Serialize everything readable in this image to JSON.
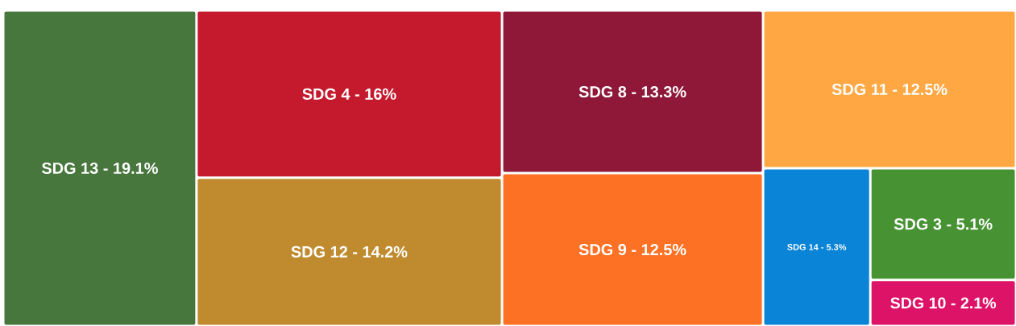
{
  "chart_data": {
    "type": "other",
    "categories": [
      "SDG 13 -",
      "SDG 4 -",
      "SDG 12 -",
      "SDG 8 -",
      "SDG 9 -",
      "SDG 11 -",
      "SDG 14 -",
      "SDG 3 -",
      "SDG 10 -"
    ],
    "values": [
      19.1,
      16,
      14.2,
      13.3,
      12.5,
      12.5,
      5.3,
      5.1,
      2.1
    ],
    "value_labels": [
      "19.1%",
      "16%",
      "14.2%",
      "13.3%",
      "12.5%",
      "12.5%",
      "5.3%",
      "5.1%",
      "2.1%"
    ],
    "colors": [
      "#48773e",
      "#c5192d",
      "#bf8b2e",
      "#8f1838",
      "#fd7125",
      "#ffa843",
      "#0a84d6",
      "#479333",
      "#dd1367"
    ]
  }
}
